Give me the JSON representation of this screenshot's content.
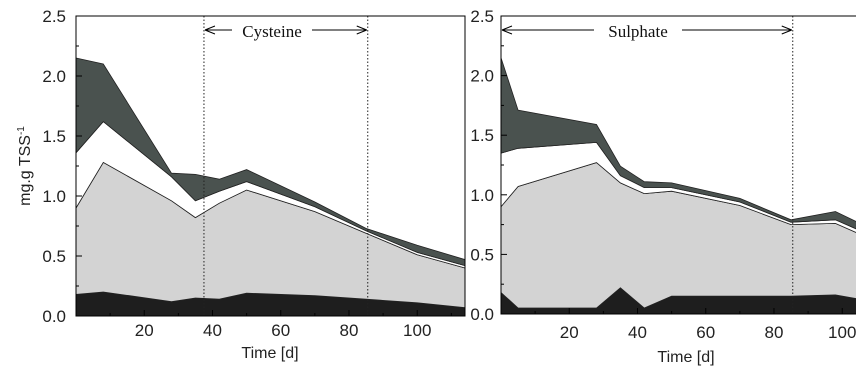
{
  "chart_data": [
    {
      "type": "area",
      "stacked": true,
      "annotation": "Cysteine",
      "xlabel": "Time [d]",
      "ylabel": "mg.g TSS-1",
      "ylabel_base": "mg.g TSS",
      "ylabel_sup": "-1",
      "xlim": [
        0,
        114
      ],
      "ylim": [
        0,
        2.5
      ],
      "xticks": [
        20,
        40,
        60,
        80,
        100
      ],
      "yticks": [
        "0.0",
        "0.5",
        "1.0",
        "1.5",
        "2.0",
        "2.5"
      ],
      "period": [
        37.5,
        85.5
      ],
      "x": [
        0,
        8,
        28,
        35,
        42,
        50,
        70,
        85,
        100,
        114
      ],
      "series": [
        {
          "color": "#1e1e1e",
          "values": [
            0.18,
            0.2,
            0.12,
            0.15,
            0.14,
            0.19,
            0.17,
            0.14,
            0.11,
            0.07
          ]
        },
        {
          "color": "#d3d3d3",
          "values": [
            0.72,
            1.08,
            0.84,
            0.67,
            0.8,
            0.86,
            0.7,
            0.55,
            0.4,
            0.33
          ]
        },
        {
          "color": "#ffffff",
          "values": [
            0.46,
            0.34,
            0.2,
            0.14,
            0.1,
            0.07,
            0.04,
            0.02,
            0.02,
            0.02
          ]
        },
        {
          "color": "#4a524f",
          "values": [
            0.79,
            0.48,
            0.03,
            0.22,
            0.1,
            0.1,
            0.04,
            0.02,
            0.06,
            0.05
          ]
        }
      ]
    },
    {
      "type": "area",
      "stacked": true,
      "annotation": "Sulphate",
      "xlabel": "Time [d]",
      "ylabel": "",
      "xlim": [
        0,
        114
      ],
      "ylim": [
        0,
        2.5
      ],
      "xticks": [
        20,
        40,
        60,
        80,
        100
      ],
      "yticks": [
        "0.0",
        "0.5",
        "1.0",
        "1.5",
        "2.0",
        "2.5"
      ],
      "period": [
        0,
        85.5
      ],
      "x": [
        0,
        5,
        28,
        35,
        42,
        50,
        70,
        85,
        98,
        114
      ],
      "series": [
        {
          "color": "#1e1e1e",
          "values": [
            0.18,
            0.05,
            0.05,
            0.22,
            0.05,
            0.15,
            0.15,
            0.15,
            0.16,
            0.08
          ]
        },
        {
          "color": "#d3d3d3",
          "values": [
            0.72,
            1.02,
            1.22,
            0.88,
            0.96,
            0.88,
            0.76,
            0.6,
            0.6,
            0.48
          ]
        },
        {
          "color": "#ffffff",
          "values": [
            0.45,
            0.32,
            0.17,
            0.06,
            0.05,
            0.03,
            0.03,
            0.02,
            0.03,
            0.03
          ]
        },
        {
          "color": "#4a524f",
          "values": [
            0.8,
            0.32,
            0.15,
            0.08,
            0.05,
            0.04,
            0.03,
            0.02,
            0.07,
            0.05
          ]
        }
      ]
    }
  ]
}
